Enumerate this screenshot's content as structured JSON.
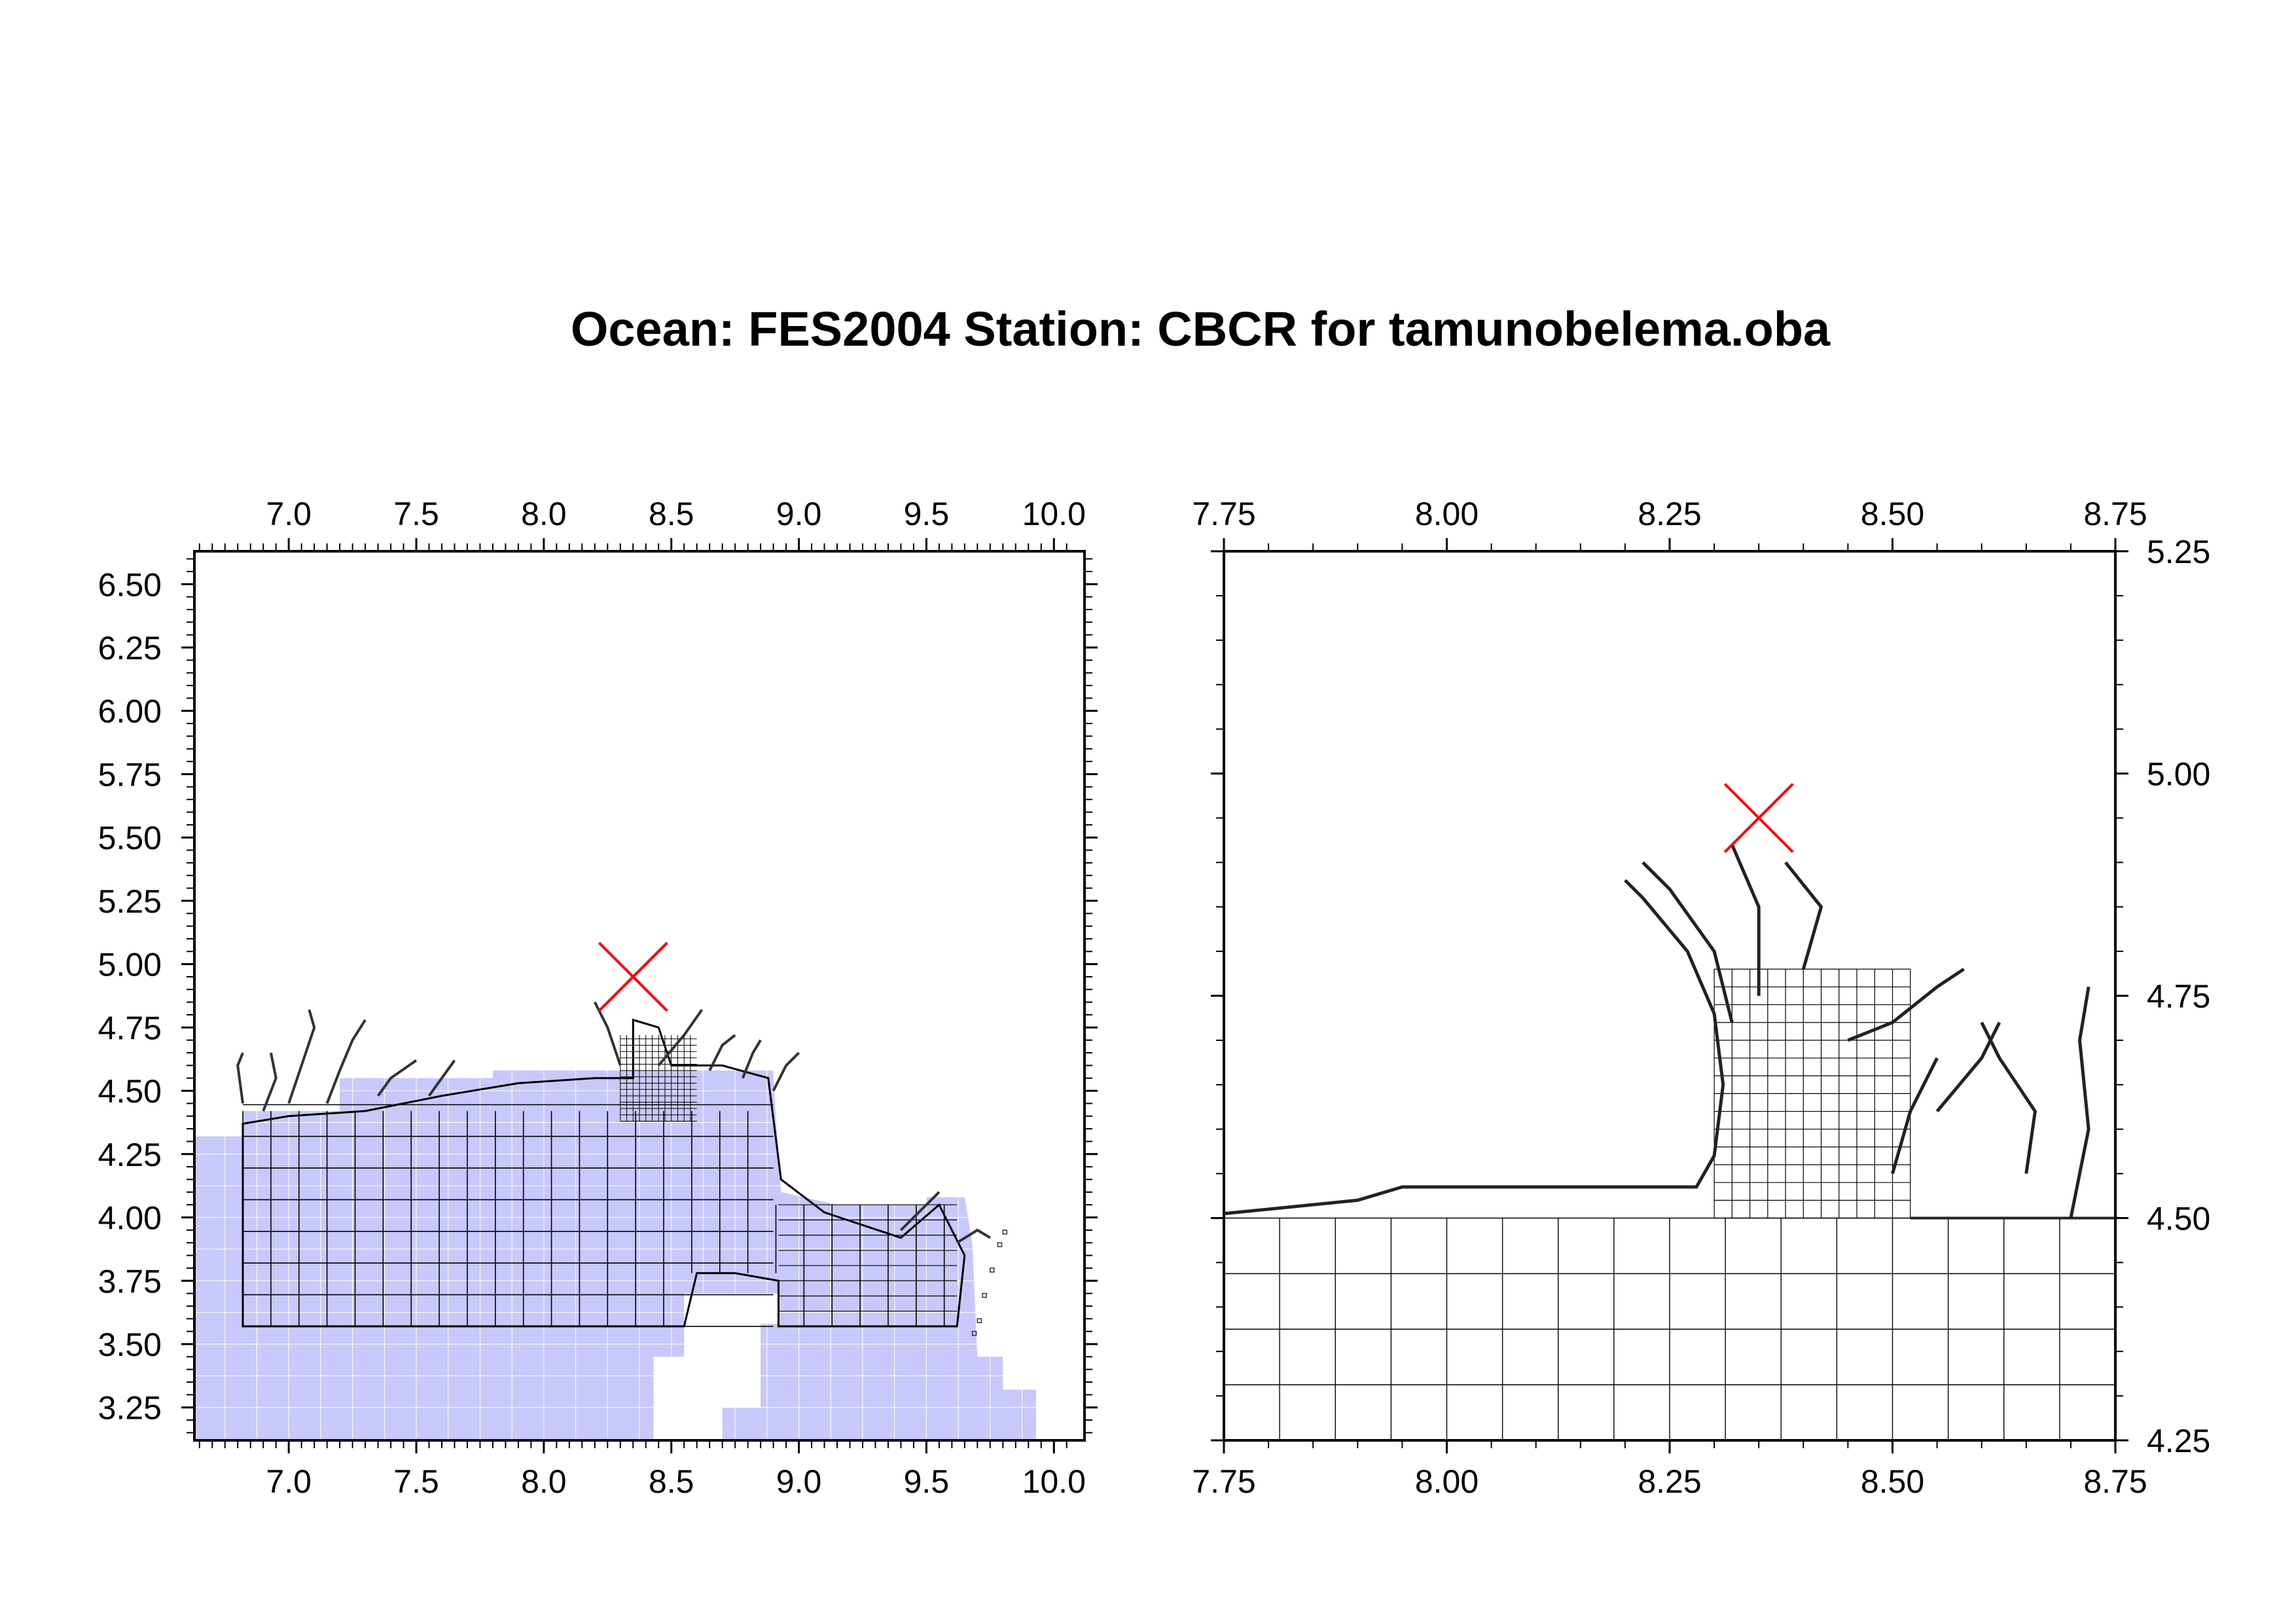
{
  "title": "Ocean: FES2004  Station: CBCR  for tamunobelema.oba",
  "colors": {
    "ocean_fill": "#c8c8fa",
    "ocean_grid_line": "#ffffff",
    "mesh_line": "#000000",
    "station_marker": "#ff0000",
    "frame": "#000000"
  },
  "station_marker_icon": "x-cross-icon",
  "panels": [
    {
      "name": "overview",
      "xlim": [
        6.63,
        10.12
      ],
      "ylim": [
        3.12,
        6.63
      ],
      "x_ticks": [
        "7.0",
        "7.5",
        "8.0",
        "8.5",
        "9.0",
        "9.5",
        "10.0"
      ],
      "y_ticks": [
        "3.25",
        "3.50",
        "3.75",
        "4.00",
        "4.25",
        "4.50",
        "4.75",
        "5.00",
        "5.25",
        "5.50",
        "5.75",
        "6.00",
        "6.25",
        "6.50"
      ],
      "y_axis_side": "left",
      "station": {
        "lon": 8.35,
        "lat": 4.95
      }
    },
    {
      "name": "zoom",
      "xlim": [
        7.75,
        8.75
      ],
      "ylim": [
        4.25,
        5.25
      ],
      "x_ticks": [
        "7.75",
        "8.00",
        "8.25",
        "8.50",
        "8.75"
      ],
      "y_ticks": [
        "4.25",
        "4.50",
        "4.75",
        "5.00",
        "5.25"
      ],
      "y_axis_side": "right",
      "station": {
        "lon": 8.35,
        "lat": 4.95
      }
    }
  ]
}
